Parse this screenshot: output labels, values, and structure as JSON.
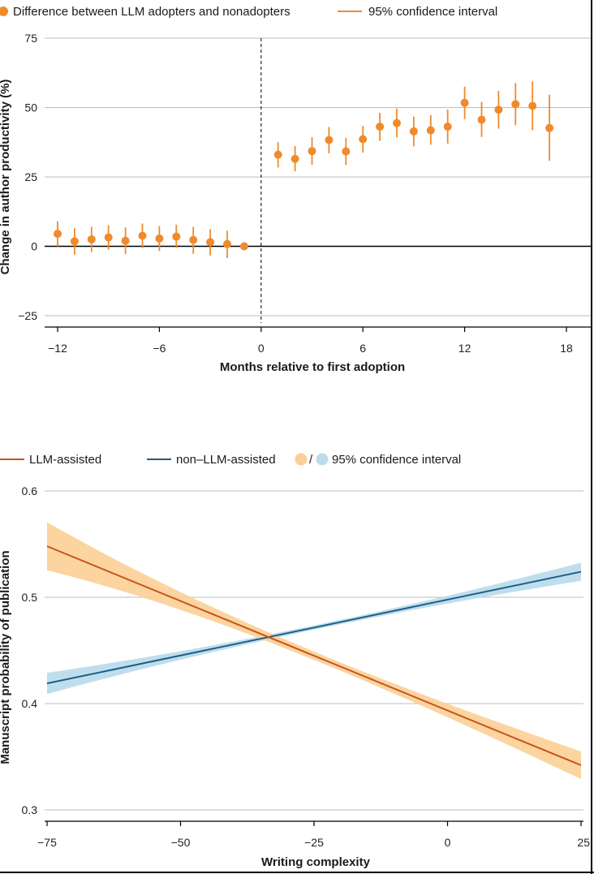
{
  "colors": {
    "orange_point": "#f08a2b",
    "llm_line": "#c9541b",
    "llm_band": "#fbcf96",
    "non_llm_line": "#1f5e86",
    "non_llm_band": "#bcdcec",
    "grid": "#bdbdbd",
    "frame": "#000000"
  },
  "chart_data": [
    {
      "type": "scatter",
      "title": "",
      "xlabel": "Months relative to first adoption",
      "ylabel": "Change in author productivity (%)",
      "xlim": [
        -12,
        18
      ],
      "ylim": [
        -25,
        75
      ],
      "xticks": [
        -12,
        -6,
        0,
        6,
        12,
        18
      ],
      "xtick_labels": [
        "−12",
        "−6",
        "0",
        "6",
        "12",
        "18"
      ],
      "yticks": [
        -25,
        0,
        25,
        50,
        75
      ],
      "ytick_labels": [
        "−25",
        "0",
        "25",
        "50",
        "75"
      ],
      "reference_line_x": 0,
      "legend": {
        "position": "top",
        "items": [
          "Difference between LLM adopters and nonadopters",
          "95% confidence interval"
        ]
      },
      "series": [
        {
          "name": "Difference between LLM adopters and nonadopters",
          "x": [
            -12,
            -11,
            -10,
            -9,
            -8,
            -7,
            -6,
            -5,
            -4,
            -3,
            -2,
            -1,
            1,
            2,
            3,
            4,
            5,
            6,
            7,
            8,
            9,
            10,
            11,
            12,
            13,
            14,
            15,
            16,
            17
          ],
          "y": [
            4.5,
            1.8,
            2.5,
            3.2,
            2.0,
            3.8,
            2.8,
            3.5,
            2.3,
            1.5,
            0.8,
            0.0,
            33.0,
            31.5,
            34.3,
            38.3,
            34.2,
            38.6,
            43.1,
            44.4,
            41.4,
            41.8,
            43.1,
            51.7,
            45.6,
            49.2,
            51.2,
            50.6,
            42.6
          ],
          "ci_low": [
            0.0,
            -3.0,
            -2.0,
            -1.2,
            -2.8,
            -0.6,
            -1.7,
            -0.6,
            -2.7,
            -3.3,
            -4.2,
            -1.0,
            28.4,
            27.0,
            29.4,
            33.5,
            29.3,
            33.8,
            38.0,
            39.2,
            36.0,
            36.6,
            37.0,
            45.8,
            39.4,
            42.4,
            43.6,
            41.8,
            30.8
          ],
          "ci_high": [
            9.0,
            6.5,
            7.0,
            7.6,
            6.8,
            8.2,
            7.3,
            7.8,
            7.0,
            6.2,
            5.6,
            1.0,
            37.5,
            36.1,
            39.3,
            43.0,
            39.1,
            43.4,
            48.1,
            49.6,
            46.7,
            47.3,
            49.3,
            57.5,
            52.0,
            56.0,
            58.8,
            59.4,
            54.6
          ]
        }
      ]
    },
    {
      "type": "line",
      "title": "",
      "xlabel": "Writing complexity",
      "ylabel": "Manuscript probability of publication",
      "xlim": [
        -75,
        25
      ],
      "ylim": [
        0.3,
        0.6
      ],
      "xticks": [
        -75,
        -50,
        -25,
        0,
        25
      ],
      "xtick_labels": [
        "−75",
        "−50",
        "−25",
        "0",
        "25"
      ],
      "yticks": [
        0.3,
        0.4,
        0.5,
        0.6
      ],
      "ytick_labels": [
        "0.3",
        "0.4",
        "0.5",
        "0.6"
      ],
      "legend": {
        "position": "top",
        "items": [
          "LLM-assisted",
          "non–LLM-assisted",
          "/",
          "95% confidence interval"
        ]
      },
      "series": [
        {
          "name": "LLM-assisted",
          "x": [
            -75,
            25
          ],
          "y": [
            0.548,
            0.342
          ],
          "ci_low": [
            0.526,
            0.329
          ],
          "ci_high": [
            0.571,
            0.355
          ]
        },
        {
          "name": "non–LLM-assisted",
          "x": [
            -75,
            25
          ],
          "y": [
            0.419,
            0.524
          ],
          "ci_low": [
            0.409,
            0.516
          ],
          "ci_high": [
            0.429,
            0.533
          ]
        }
      ]
    }
  ]
}
